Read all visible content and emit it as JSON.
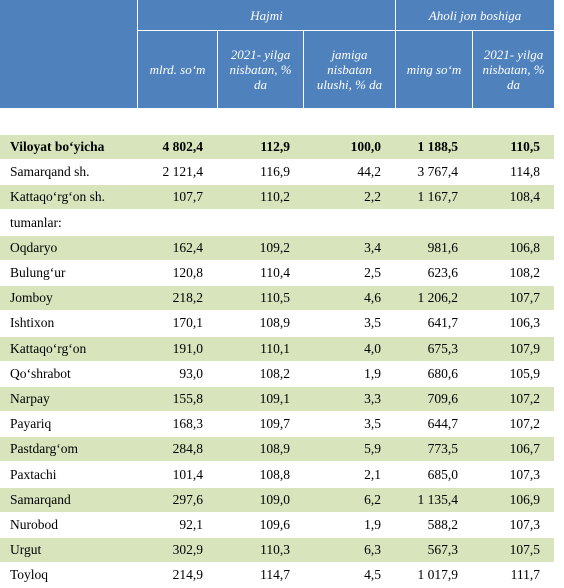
{
  "header": {
    "groups": [
      "Hajmi",
      "Aholi jon boshiga"
    ],
    "columns": [
      "mlrd. so‘m",
      "2021- yilga nisbatan, % da",
      "jamiga nisbatan ulushi, % da",
      "ming so‘m",
      "2021- yilga nisbatan, % da"
    ]
  },
  "rows": [
    [
      "Viloyat bo‘yicha",
      "4 802,4",
      "112,9",
      "100,0",
      "1 188,5",
      "110,5"
    ],
    [
      "Samarqand sh.",
      "2 121,4",
      "116,9",
      "44,2",
      "3 767,4",
      "114,8"
    ],
    [
      "Kattaqo‘rg‘on sh.",
      "107,7",
      "110,2",
      "2,2",
      "1 167,7",
      "108,4"
    ],
    [
      "tumanlar:"
    ],
    [
      "Oqdaryo",
      "162,4",
      "109,2",
      "3,4",
      "981,6",
      "106,8"
    ],
    [
      "Bulung‘ur",
      "120,8",
      "110,4",
      "2,5",
      "623,6",
      "108,2"
    ],
    [
      "Jomboy",
      "218,2",
      "110,5",
      "4,6",
      "1 206,2",
      "107,7"
    ],
    [
      "Ishtixon",
      "170,1",
      "108,9",
      "3,5",
      "641,7",
      "106,3"
    ],
    [
      "Kattaqo‘rg‘on",
      "191,0",
      "110,1",
      "4,0",
      "675,3",
      "107,9"
    ],
    [
      "Qo‘shrabot",
      "93,0",
      "108,2",
      "1,9",
      "680,6",
      "105,9"
    ],
    [
      "Narpay",
      "155,8",
      "109,1",
      "3,3",
      "709,6",
      "107,2"
    ],
    [
      "Payariq",
      "168,3",
      "109,7",
      "3,5",
      "644,7",
      "107,2"
    ],
    [
      "Pastdarg‘om",
      "284,8",
      "108,9",
      "5,9",
      "773,5",
      "106,7"
    ],
    [
      "Paxtachi",
      "101,4",
      "108,8",
      "2,1",
      "685,0",
      "107,3"
    ],
    [
      "Samarqand",
      "297,6",
      "109,0",
      "6,2",
      "1 135,4",
      "106,9"
    ],
    [
      "Nurobod",
      "92,1",
      "109,6",
      "1,9",
      "588,2",
      "107,3"
    ],
    [
      "Urgut",
      "302,9",
      "110,3",
      "6,3",
      "567,3",
      "107,5"
    ],
    [
      "Toyloq",
      "214,9",
      "114,7",
      "4,5",
      "1 017,9",
      "111,7"
    ]
  ]
}
